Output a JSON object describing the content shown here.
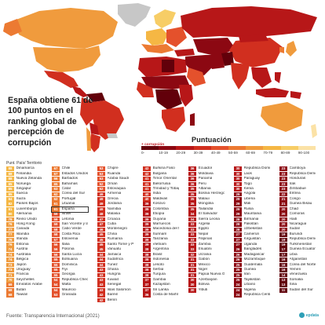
{
  "headline": "España obtiene 61 de 100 puntos en el ranking global de percepción de corrupción",
  "legend": {
    "title": "Puntuación",
    "more_corruption": "+ corrupción",
    "bins": [
      "0-",
      "10-19",
      "20-29",
      "30-39",
      "40-49",
      "50-59",
      "60-69",
      "70-79",
      "80-89",
      "90-100"
    ],
    "colors": [
      "#62000a",
      "#8c0812",
      "#b71718",
      "#d12f1f",
      "#e4512c",
      "#ec7a32",
      "#f09b3d",
      "#f5b744",
      "#f7cd66",
      "#fbe2a6"
    ]
  },
  "columns_header": "Punt. País/ Territorio",
  "highlight": "España",
  "score_colors": {
    "lt20": "#62000a",
    "20s": "#8c0812",
    "30s": "#b71718",
    "40s": "#d12f1f",
    "50s": "#e4512c",
    "60s": "#ec7a32",
    "70s": "#f09b3d",
    "80s": "#f5b744"
  },
  "map_colors": {
    "ocean": "#ffffff",
    "land_default": "#c7c7c7"
  },
  "columns": [
    [
      {
        "score": 88,
        "name": "Dinamarca"
      },
      {
        "score": 88,
        "name": "Finlandia"
      },
      {
        "score": 88,
        "name": "Nueva Zelanda"
      },
      {
        "score": 85,
        "name": "Noruega"
      },
      {
        "score": 85,
        "name": "Singapur"
      },
      {
        "score": 85,
        "name": "Suecia"
      },
      {
        "score": 84,
        "name": "Suiza"
      },
      {
        "score": 82,
        "name": "Países Bajos"
      },
      {
        "score": 81,
        "name": "Luxemburgo"
      },
      {
        "score": 80,
        "name": "Alemania"
      },
      {
        "score": 78,
        "name": "Reino Unido"
      },
      {
        "score": 76,
        "name": "Hong Kong"
      },
      {
        "score": 77,
        "name": "Canadá"
      },
      {
        "score": 77,
        "name": "Islandia"
      },
      {
        "score": 76,
        "name": "Irlanda"
      },
      {
        "score": 76,
        "name": "Estonia"
      },
      {
        "score": 74,
        "name": "Austria"
      },
      {
        "score": 74,
        "name": "Australia"
      },
      {
        "score": 74,
        "name": "Bélgica"
      },
      {
        "score": 73,
        "name": "Japón"
      },
      {
        "score": 73,
        "name": "Uruguay"
      },
      {
        "score": 71,
        "name": "Francia"
      },
      {
        "score": 70,
        "name": "Seychelles"
      },
      {
        "score": 69,
        "name": "Emiratos Árabes Unidos"
      },
      {
        "score": 68,
        "name": "Bután"
      },
      {
        "score": 68,
        "name": "Taiwán"
      }
    ],
    [
      {
        "score": 67,
        "name": "Chile"
      },
      {
        "score": 67,
        "name": "Estados Unidos de América"
      },
      {
        "score": 66,
        "name": "Barbados"
      },
      {
        "score": 65,
        "name": "Bahamas"
      },
      {
        "score": 63,
        "name": "Catar"
      },
      {
        "score": 62,
        "name": "Corea del Sur"
      },
      {
        "score": 62,
        "name": "Portugal"
      },
      {
        "score": 61,
        "name": "Lituania"
      },
      {
        "score": 61,
        "name": "España"
      },
      {
        "score": 59,
        "name": "Israel"
      },
      {
        "score": 59,
        "name": "Letonia"
      },
      {
        "score": 59,
        "name": "San Vicente y las Granadinas"
      },
      {
        "score": 58,
        "name": "Cabo Verde"
      },
      {
        "score": 58,
        "name": "Costa Rica"
      },
      {
        "score": 57,
        "name": "Eslovenia"
      },
      {
        "score": 56,
        "name": "Italia"
      },
      {
        "score": 56,
        "name": "Polonia"
      },
      {
        "score": 56,
        "name": "Santa Lucía"
      },
      {
        "score": 55,
        "name": "Botsuana"
      },
      {
        "score": 55,
        "name": "Dominica"
      },
      {
        "score": 55,
        "name": "Fiyi"
      },
      {
        "score": 55,
        "name": "Georgia"
      },
      {
        "score": 54,
        "name": "República Checa"
      },
      {
        "score": 54,
        "name": "Malta"
      },
      {
        "score": 54,
        "name": "Mauricio"
      },
      {
        "score": 53,
        "name": "Granada"
      }
    ],
    [
      {
        "score": 53,
        "name": "Chipre"
      },
      {
        "score": 53,
        "name": "Ruanda"
      },
      {
        "score": 53,
        "name": "Arabia Saudí"
      },
      {
        "score": 52,
        "name": "Omán"
      },
      {
        "score": 52,
        "name": "Eslovaquia"
      },
      {
        "score": 49,
        "name": "Armenia"
      },
      {
        "score": 49,
        "name": "Grecia"
      },
      {
        "score": 49,
        "name": "Jordania"
      },
      {
        "score": 49,
        "name": "Namibia"
      },
      {
        "score": 48,
        "name": "Malasia"
      },
      {
        "score": 47,
        "name": "Croacia"
      },
      {
        "score": 47,
        "name": "Cuba"
      },
      {
        "score": 46,
        "name": "Montenegro"
      },
      {
        "score": 45,
        "name": "China"
      },
      {
        "score": 45,
        "name": "Rumanía"
      },
      {
        "score": 45,
        "name": "Santo Tomé y Príncipe"
      },
      {
        "score": 45,
        "name": "Vanuatu"
      },
      {
        "score": 44,
        "name": "Jamaica"
      },
      {
        "score": 44,
        "name": "Sudáfrica"
      },
      {
        "score": 44,
        "name": "Túnez"
      },
      {
        "score": 43,
        "name": "Ghana"
      },
      {
        "score": 43,
        "name": "Hungría"
      },
      {
        "score": 43,
        "name": "Kuwait"
      },
      {
        "score": 43,
        "name": "Senegal"
      },
      {
        "score": 43,
        "name": "Islas Salomón"
      },
      {
        "score": 42,
        "name": "Baréin"
      },
      {
        "score": 42,
        "name": "Benín"
      }
    ],
    [
      {
        "score": 42,
        "name": "Burkina Faso"
      },
      {
        "score": 42,
        "name": "Bulgaria"
      },
      {
        "score": 41,
        "name": "Timor Oriental"
      },
      {
        "score": 41,
        "name": "Bielorrusia"
      },
      {
        "score": 41,
        "name": "Trinidad y Tobago"
      },
      {
        "score": 40,
        "name": "India"
      },
      {
        "score": 40,
        "name": "Maldivas"
      },
      {
        "score": 39,
        "name": "Kosovo"
      },
      {
        "score": 39,
        "name": "Colombia"
      },
      {
        "score": 39,
        "name": "Etiopía"
      },
      {
        "score": 39,
        "name": "Guyana"
      },
      {
        "score": 39,
        "name": "Marruecos"
      },
      {
        "score": 39,
        "name": "Macedonia del Norte"
      },
      {
        "score": 39,
        "name": "Surinam"
      },
      {
        "score": 39,
        "name": "Tanzania"
      },
      {
        "score": 39,
        "name": "Vietnam"
      },
      {
        "score": 38,
        "name": "Argentina"
      },
      {
        "score": 38,
        "name": "Brasil"
      },
      {
        "score": 38,
        "name": "Indonesia"
      },
      {
        "score": 38,
        "name": "Lesoto"
      },
      {
        "score": 38,
        "name": "Serbia"
      },
      {
        "score": 38,
        "name": "Turquía"
      },
      {
        "score": 37,
        "name": "Gambia"
      },
      {
        "score": 37,
        "name": "Kazajistán"
      },
      {
        "score": 37,
        "name": "Sri Lanka"
      },
      {
        "score": 36,
        "name": "Costa de Marfil"
      }
    ],
    [
      {
        "score": 36,
        "name": "Ecuador"
      },
      {
        "score": 36,
        "name": "Moldavia"
      },
      {
        "score": 36,
        "name": "Panamá"
      },
      {
        "score": 36,
        "name": "Perú"
      },
      {
        "score": 35,
        "name": "Albania"
      },
      {
        "score": 35,
        "name": "Bosnia Herzegovina"
      },
      {
        "score": 35,
        "name": "Malaui"
      },
      {
        "score": 35,
        "name": "Mongolia"
      },
      {
        "score": 35,
        "name": "Tailandia"
      },
      {
        "score": 34,
        "name": "El Salvador"
      },
      {
        "score": 34,
        "name": "Sierra Leona"
      },
      {
        "score": 33,
        "name": "Argelia"
      },
      {
        "score": 33,
        "name": "Egipto"
      },
      {
        "score": 33,
        "name": "Nepal"
      },
      {
        "score": 33,
        "name": "Filipinas"
      },
      {
        "score": 33,
        "name": "Zambia"
      },
      {
        "score": 33,
        "name": "Esuatini"
      },
      {
        "score": 32,
        "name": "Ucrania"
      },
      {
        "score": 31,
        "name": "Gabón"
      },
      {
        "score": 31,
        "name": "México"
      },
      {
        "score": 31,
        "name": "Níger"
      },
      {
        "score": 31,
        "name": "Papúa Nueva Guinea"
      },
      {
        "score": 30,
        "name": "Azerbaiyán"
      },
      {
        "score": 30,
        "name": "Bolivia"
      },
      {
        "score": 30,
        "name": "Yibuti"
      }
    ],
    [
      {
        "score": 30,
        "name": "República Dominicana"
      },
      {
        "score": 30,
        "name": "Laos"
      },
      {
        "score": 30,
        "name": "Paraguay"
      },
      {
        "score": 30,
        "name": "Togo"
      },
      {
        "score": 30,
        "name": "Kenia"
      },
      {
        "score": 29,
        "name": "Angola"
      },
      {
        "score": 29,
        "name": "Liberia"
      },
      {
        "score": 29,
        "name": "Mali"
      },
      {
        "score": 29,
        "name": "Rusia"
      },
      {
        "score": 29,
        "name": "Mauritania"
      },
      {
        "score": 28,
        "name": "Birmania"
      },
      {
        "score": 28,
        "name": "Pakistán"
      },
      {
        "score": 28,
        "name": "Uzbekistán"
      },
      {
        "score": 27,
        "name": "Camerún"
      },
      {
        "score": 27,
        "name": "Kirguistán"
      },
      {
        "score": 27,
        "name": "Uganda"
      },
      {
        "score": 26,
        "name": "Bangladés"
      },
      {
        "score": 26,
        "name": "Madagascar"
      },
      {
        "score": 26,
        "name": "Mozambique"
      },
      {
        "score": 25,
        "name": "Guatemala"
      },
      {
        "score": 25,
        "name": "Guinea"
      },
      {
        "score": 25,
        "name": "Irán"
      },
      {
        "score": 25,
        "name": "Tayikistán"
      },
      {
        "score": 24,
        "name": "Líbano"
      },
      {
        "score": 24,
        "name": "Nigeria"
      },
      {
        "score": 24,
        "name": "República Centroafricana"
      }
    ],
    [
      {
        "score": 23,
        "name": "Camboya"
      },
      {
        "score": 23,
        "name": "República Democrática del Congo"
      },
      {
        "score": 23,
        "name": "Honduras"
      },
      {
        "score": 23,
        "name": "Irak"
      },
      {
        "score": 23,
        "name": "Zimbabue"
      },
      {
        "score": 22,
        "name": "Eritrea"
      },
      {
        "score": 21,
        "name": "Congo"
      },
      {
        "score": 21,
        "name": "Guinea Bisáu"
      },
      {
        "score": 20,
        "name": "Chad"
      },
      {
        "score": 20,
        "name": "Comoras"
      },
      {
        "score": 20,
        "name": "Haití"
      },
      {
        "score": 20,
        "name": "Nicaragua"
      },
      {
        "score": 20,
        "name": "Sudán"
      },
      {
        "score": 19,
        "name": "Burundi"
      },
      {
        "score": 19,
        "name": "República Democrática del Congo"
      },
      {
        "score": 19,
        "name": "Turkmenistán"
      },
      {
        "score": 17,
        "name": "Guinea Ecuatorial"
      },
      {
        "score": 17,
        "name": "Libia"
      },
      {
        "score": 16,
        "name": "Afganistán"
      },
      {
        "score": 16,
        "name": "Corea del Norte"
      },
      {
        "score": 16,
        "name": "Yemen"
      },
      {
        "score": 14,
        "name": "Venezuela"
      },
      {
        "score": 13,
        "name": "Somalia"
      },
      {
        "score": 13,
        "name": "Siria"
      },
      {
        "score": 11,
        "name": "Sudán del Sur"
      }
    ]
  ],
  "source": "Fuente: Transparencia Internacional (2021)",
  "brand": "epdata"
}
